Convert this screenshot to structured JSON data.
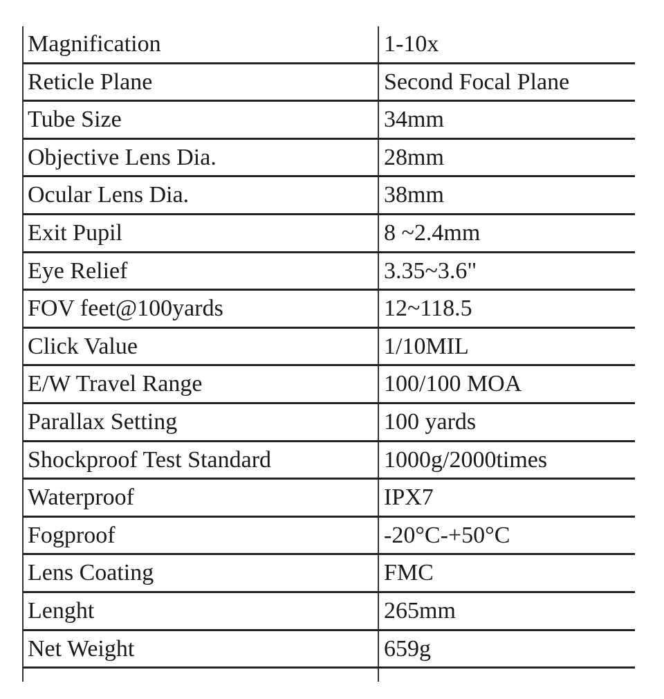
{
  "table": {
    "rows": [
      [
        "Magnification",
        "1-10x"
      ],
      [
        "Reticle Plane",
        "Second Focal Plane"
      ],
      [
        "Tube Size",
        "34mm"
      ],
      [
        "Objective Lens Dia.",
        "28mm"
      ],
      [
        "Ocular Lens Dia.",
        "38mm"
      ],
      [
        "Exit Pupil",
        "8 ~2.4mm"
      ],
      [
        "Eye Relief",
        "3.35~3.6\""
      ],
      [
        "FOV feet@100yards",
        "12~118.5"
      ],
      [
        "Click Value",
        "1/10MIL"
      ],
      [
        "E/W Travel Range",
        "100/100 MOA"
      ],
      [
        "Parallax Setting",
        "100 yards"
      ],
      [
        "Shockproof Test Standard",
        "1000g/2000times"
      ],
      [
        "Waterproof",
        "IPX7"
      ],
      [
        "Fogproof",
        "-20°C-+50°C"
      ],
      [
        "Lens Coating",
        "FMC"
      ],
      [
        "Lenght",
        "265mm"
      ],
      [
        "Net Weight",
        "659g"
      ]
    ]
  }
}
